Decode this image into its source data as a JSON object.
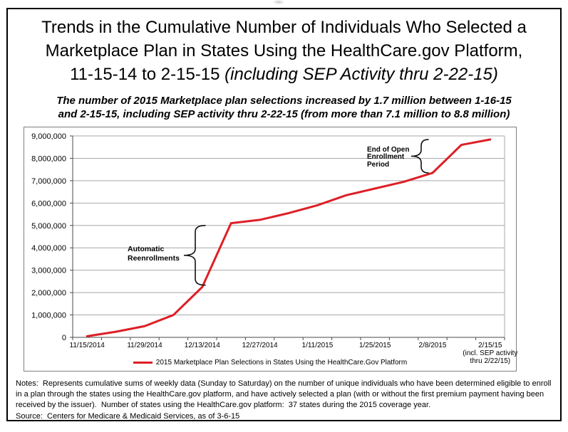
{
  "header": {
    "title_line1": "Trends in the Cumulative Number of Individuals Who Selected a",
    "title_line2": "Marketplace Plan in States Using the HealthCare.gov Platform,",
    "title_line3_regular": "11-15-14 to 2-15-15",
    "title_line3_italic": "(including SEP Activity thru 2-22-15)",
    "subtitle_line1": "The number of 2015 Marketplace plan selections increased by 1.7 million between 1-16-15",
    "subtitle_line2": "and 2-15-15, including SEP activity thru 2-22-15 (from more than 7.1 million to 8.8 million)"
  },
  "chart_data": {
    "type": "line",
    "title": "Trends in the Cumulative Number of Individuals Who Selected a Marketplace Plan in States Using the HealthCare.gov Platform, 11-15-14 to 2-15-15 (including SEP Activity thru 2-22-15)",
    "grid": "horizontal",
    "legend_position": "bottom-center",
    "y_axis": {
      "min": 0,
      "max": 9000000,
      "step": 1000000,
      "tick_format": "thousands-comma"
    },
    "x_axis": {
      "num_points": 15,
      "tick_labels": [
        {
          "index": 0,
          "lines": [
            "11/15/2014"
          ]
        },
        {
          "index": 2,
          "lines": [
            "11/29/2014"
          ]
        },
        {
          "index": 4,
          "lines": [
            "12/13/2014"
          ]
        },
        {
          "index": 6,
          "lines": [
            "12/27/2014"
          ]
        },
        {
          "index": 8,
          "lines": [
            "1/11/2015"
          ]
        },
        {
          "index": 10,
          "lines": [
            "1/25/2015"
          ]
        },
        {
          "index": 12,
          "lines": [
            "2/8/2015"
          ]
        },
        {
          "index": 14,
          "lines": [
            "2/15/15",
            "(incl. SEP activity",
            "thru 2/22/15)"
          ]
        }
      ]
    },
    "series": [
      {
        "name": "2015 Marketplace Plan Selections in States Using the HealthCare.Gov Platform",
        "color": "#dd1f26",
        "values": [
          50000,
          250000,
          500000,
          1000000,
          2250000,
          5100000,
          5250000,
          5550000,
          5900000,
          6350000,
          6650000,
          6950000,
          7350000,
          8600000,
          8840000
        ]
      }
    ],
    "annotations": [
      {
        "lines": [
          "Automatic",
          "Reenrollments"
        ],
        "brace_from_value": 2330000,
        "brace_to_value": 5000000
      },
      {
        "lines": [
          "End of Open",
          "Enrollment",
          "Period"
        ],
        "brace_from_value": 7350000,
        "brace_to_value": 8840000
      }
    ]
  },
  "footer": {
    "notes": "Notes:  Represents cumulative sums of weekly data (Sunday to Saturday) on the number of unique individuals who have been determined eligible to enroll in a plan through the states using the HealthCare.gov platform, and have actively selected a plan (with or without the first premium payment having been received by the issuer).  Number of states using the HealthCare.gov platform:  37 states during the 2015 coverage year.",
    "source": "Source:  Centers for Medicare & Medicaid Services, as of 3-6-15"
  }
}
